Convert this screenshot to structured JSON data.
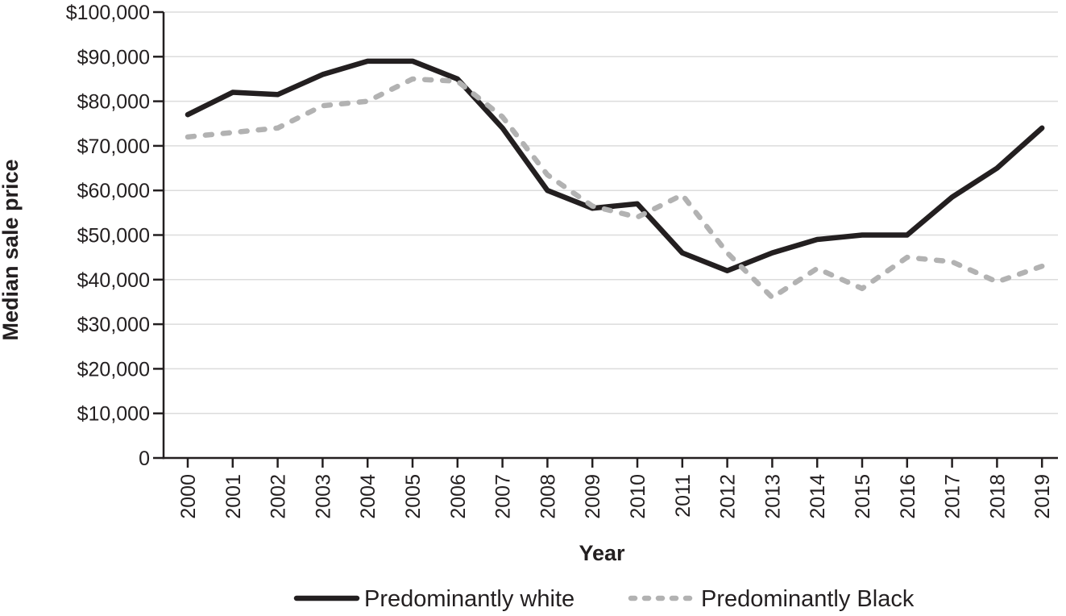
{
  "chart_data": {
    "type": "line",
    "title": "",
    "xlabel": "Year",
    "ylabel": "Median sale price",
    "x": [
      2000,
      2001,
      2002,
      2003,
      2004,
      2005,
      2006,
      2007,
      2008,
      2009,
      2010,
      2011,
      2012,
      2013,
      2014,
      2015,
      2016,
      2017,
      2018,
      2019
    ],
    "series": [
      {
        "name": "Predominantly white",
        "line_style": "solid",
        "color": "#231f20",
        "values": [
          77000,
          82000,
          81500,
          86000,
          89000,
          89000,
          85000,
          74000,
          60000,
          56000,
          57000,
          46000,
          42000,
          46000,
          49000,
          50000,
          50000,
          58500,
          65000,
          74000
        ]
      },
      {
        "name": "Predominantly Black",
        "line_style": "dashed",
        "color": "#b2b2b2",
        "values": [
          72000,
          73000,
          74000,
          79000,
          80000,
          85000,
          84500,
          76500,
          63500,
          56500,
          54000,
          59000,
          46000,
          36000,
          42500,
          38000,
          45000,
          44000,
          39500,
          43000
        ]
      }
    ],
    "ylim": [
      0,
      100000
    ],
    "ytick_step": 10000,
    "y_tick_labels": [
      "0",
      "$10,000",
      "$20,000",
      "$30,000",
      "$40,000",
      "$50,000",
      "$60,000",
      "$70,000",
      "$80,000",
      "$90,000",
      "$100,000"
    ],
    "grid": "horizontal",
    "grid_color": "#dcdcdc",
    "axis_color": "#231f20",
    "text_color": "#231f20",
    "background_color": "#ffffff",
    "legend_position": "bottom"
  }
}
